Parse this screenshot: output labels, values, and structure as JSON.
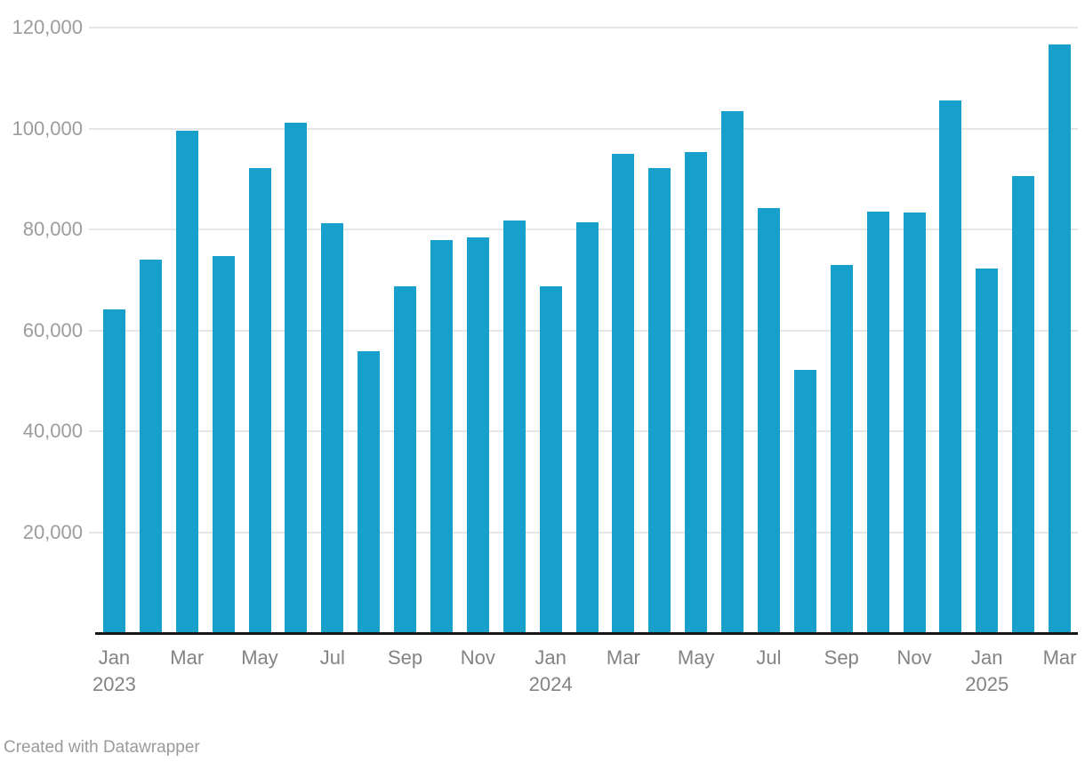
{
  "footer": {
    "credit": "Created with Datawrapper"
  },
  "chart_data": {
    "type": "bar",
    "title": "",
    "xlabel": "",
    "ylabel": "",
    "ylim": [
      0,
      120000
    ],
    "grid": true,
    "legend": "none",
    "bar_color": "#18a0cc",
    "gridline_color": "#e6e6e6",
    "axis_line_color": "#161616",
    "y_tick_label_color": "#9c9c9c",
    "x_tick_label_color": "#838383",
    "categories": [
      "Jan 2023",
      "Feb 2023",
      "Mar 2023",
      "Apr 2023",
      "May 2023",
      "Jun 2023",
      "Jul 2023",
      "Aug 2023",
      "Sep 2023",
      "Oct 2023",
      "Nov 2023",
      "Dec 2023",
      "Jan 2024",
      "Feb 2024",
      "Mar 2024",
      "Apr 2024",
      "May 2024",
      "Jun 2024",
      "Jul 2024",
      "Aug 2024",
      "Sep 2024",
      "Oct 2024",
      "Nov 2024",
      "Dec 2024",
      "Jan 2025",
      "Feb 2025",
      "Mar 2025"
    ],
    "values": [
      64200,
      74000,
      99500,
      74800,
      92200,
      101200,
      81200,
      55900,
      68700,
      77900,
      78400,
      81800,
      68700,
      81400,
      95000,
      92100,
      95400,
      103400,
      84200,
      52100,
      73000,
      83500,
      83300,
      105500,
      72200,
      90500,
      116700
    ],
    "y_ticks": [
      {
        "value": 20000,
        "label": "20,000"
      },
      {
        "value": 40000,
        "label": "40,000"
      },
      {
        "value": 60000,
        "label": "60,000"
      },
      {
        "value": 80000,
        "label": "80,000"
      },
      {
        "value": 100000,
        "label": "100,000"
      },
      {
        "value": 120000,
        "label": "120,000"
      }
    ],
    "x_ticks": [
      {
        "bar_index": 0,
        "label": "Jan",
        "year": "2023"
      },
      {
        "bar_index": 2,
        "label": "Mar"
      },
      {
        "bar_index": 4,
        "label": "May"
      },
      {
        "bar_index": 6,
        "label": "Jul"
      },
      {
        "bar_index": 8,
        "label": "Sep"
      },
      {
        "bar_index": 10,
        "label": "Nov"
      },
      {
        "bar_index": 12,
        "label": "Jan",
        "year": "2024"
      },
      {
        "bar_index": 14,
        "label": "Mar"
      },
      {
        "bar_index": 16,
        "label": "May"
      },
      {
        "bar_index": 18,
        "label": "Jul"
      },
      {
        "bar_index": 20,
        "label": "Sep"
      },
      {
        "bar_index": 22,
        "label": "Nov"
      },
      {
        "bar_index": 24,
        "label": "Jan",
        "year": "2025"
      },
      {
        "bar_index": 26,
        "label": "Mar"
      }
    ]
  }
}
